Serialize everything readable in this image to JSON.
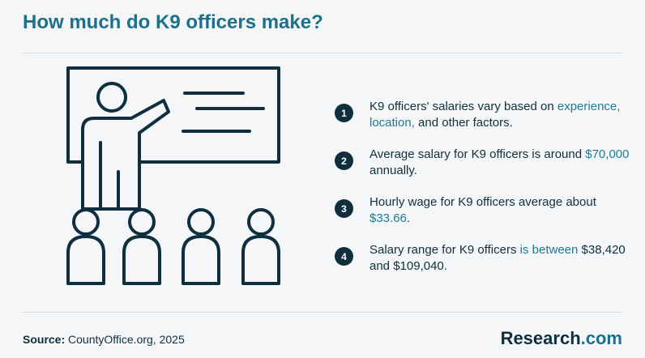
{
  "title": "How much do K9 officers make?",
  "points": [
    {
      "number": "1",
      "parts": [
        {
          "text": "K9 officers' salaries vary based on ",
          "highlight": false
        },
        {
          "text": "experience, location,",
          "highlight": true
        },
        {
          "text": " and other factors.",
          "highlight": false
        }
      ]
    },
    {
      "number": "2",
      "parts": [
        {
          "text": "Average salary for K9 officers is around ",
          "highlight": false
        },
        {
          "text": "$70,000",
          "highlight": true
        },
        {
          "text": " annually.",
          "highlight": false
        }
      ]
    },
    {
      "number": "3",
      "parts": [
        {
          "text": "Hourly wage for K9 officers average about ",
          "highlight": false
        },
        {
          "text": "$33.66",
          "highlight": true
        },
        {
          "text": ".",
          "highlight": false
        }
      ]
    },
    {
      "number": "4",
      "parts": [
        {
          "text": "Salary range for K9 officers ",
          "highlight": false
        },
        {
          "text": "is between",
          "highlight": true
        },
        {
          "text": " $38,420 and $109,040.",
          "highlight": false
        }
      ]
    }
  ],
  "source": {
    "label": "Source:",
    "text": "CountyOffice.org, 2025"
  },
  "logo": {
    "main": "Research",
    "accent": ".com"
  },
  "illustration": {
    "icon": "presenter-with-audience-icon",
    "stroke_color": "#0f2f3f"
  }
}
